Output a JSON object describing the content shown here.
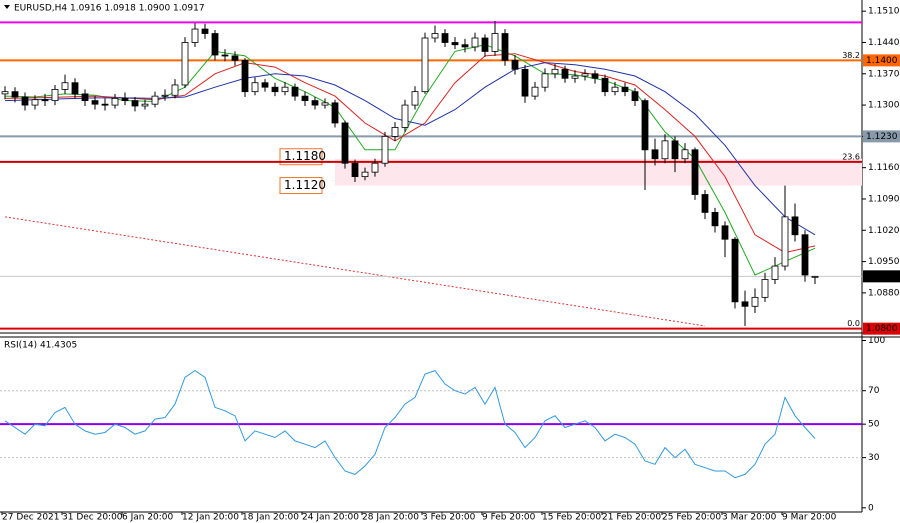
{
  "chart_data": [
    {
      "type": "candlestick",
      "title": "EURUSD,H4",
      "quote": "1.0916 1.0918 1.0900 1.0917",
      "categories": [
        "27 Dec 2021",
        null,
        null,
        null,
        null,
        null,
        "31 Dec 20:00",
        null,
        null,
        null,
        null,
        null,
        "6 Jan 20:00",
        null,
        null,
        null,
        null,
        null,
        "12 Jan 20:00",
        null,
        null,
        null,
        null,
        null,
        "18 Jan 20:00",
        null,
        null,
        null,
        null,
        null,
        "24 Jan 20:00",
        null,
        null,
        null,
        null,
        null,
        "28 Jan 20:00",
        null,
        null,
        null,
        null,
        null,
        "3 Feb 20:00",
        null,
        null,
        null,
        null,
        null,
        "9 Feb 20:00",
        null,
        null,
        null,
        null,
        null,
        "15 Feb 20:00",
        null,
        null,
        null,
        null,
        null,
        "21 Feb 20:00",
        null,
        null,
        null,
        null,
        null,
        "25 Feb 20:00",
        null,
        null,
        null,
        null,
        null,
        "3 Mar 20:00",
        null,
        null,
        null,
        null,
        null,
        "9 Mar 20:00",
        null,
        null,
        null
      ],
      "open": [
        1.1325,
        1.133,
        1.1318,
        1.13,
        1.1312,
        1.131,
        1.1335,
        1.135,
        1.1325,
        1.131,
        1.1302,
        1.13,
        1.1315,
        1.131,
        1.1298,
        1.1302,
        1.132,
        1.1322,
        1.1345,
        1.144,
        1.147,
        1.146,
        1.1412,
        1.141,
        1.14,
        1.133,
        1.135,
        1.134,
        1.133,
        1.134,
        1.132,
        1.131,
        1.13,
        1.1305,
        1.126,
        1.117,
        1.114,
        1.115,
        1.117,
        1.123,
        1.125,
        1.13,
        1.133,
        1.145,
        1.146,
        1.144,
        1.1435,
        1.143,
        1.145,
        1.142,
        1.146,
        1.14,
        1.138,
        1.132,
        1.134,
        1.137,
        1.138,
        1.136,
        1.1365,
        1.137,
        1.136,
        1.133,
        1.134,
        1.133,
        1.131,
        1.12,
        1.118,
        1.122,
        1.118,
        1.12,
        1.11,
        1.106,
        1.103,
        1.1,
        1.086,
        1.085,
        1.087,
        1.091,
        1.094,
        1.105,
        1.101,
        1.0916
      ],
      "high": [
        1.1342,
        1.134,
        1.1328,
        1.1322,
        1.1325,
        1.1345,
        1.1368,
        1.136,
        1.1335,
        1.132,
        1.1315,
        1.1325,
        1.1328,
        1.1318,
        1.1312,
        1.133,
        1.1335,
        1.1358,
        1.1452,
        1.1483,
        1.1482,
        1.1468,
        1.1425,
        1.142,
        1.1405,
        1.1362,
        1.1358,
        1.135,
        1.1352,
        1.1348,
        1.133,
        1.1318,
        1.1315,
        1.1312,
        1.1265,
        1.1178,
        1.116,
        1.118,
        1.124,
        1.1262,
        1.1312,
        1.1342,
        1.1462,
        1.1478,
        1.147,
        1.1452,
        1.1448,
        1.1462,
        1.1458,
        1.1488,
        1.147,
        1.1412,
        1.139,
        1.1352,
        1.1382,
        1.1392,
        1.1388,
        1.1378,
        1.138,
        1.1378,
        1.1368,
        1.1352,
        1.135,
        1.1338,
        1.1315,
        1.1225,
        1.1235,
        1.123,
        1.1215,
        1.1205,
        1.111,
        1.107,
        1.104,
        1.1005,
        1.0885,
        1.089,
        1.0925,
        1.096,
        1.112,
        1.108,
        1.102,
        1.0918
      ],
      "low": [
        1.1313,
        1.1306,
        1.1288,
        1.129,
        1.1298,
        1.13,
        1.1325,
        1.1315,
        1.1298,
        1.129,
        1.1288,
        1.1292,
        1.13,
        1.1286,
        1.129,
        1.1295,
        1.131,
        1.1315,
        1.1338,
        1.143,
        1.1448,
        1.14,
        1.1398,
        1.1388,
        1.1318,
        1.1322,
        1.133,
        1.132,
        1.1322,
        1.131,
        1.1298,
        1.129,
        1.1292,
        1.125,
        1.1158,
        1.1128,
        1.1132,
        1.114,
        1.1162,
        1.122,
        1.124,
        1.129,
        1.1325,
        1.144,
        1.143,
        1.1425,
        1.1418,
        1.142,
        1.1408,
        1.141,
        1.1388,
        1.1368,
        1.1305,
        1.1312,
        1.133,
        1.136,
        1.135,
        1.135,
        1.1355,
        1.1348,
        1.132,
        1.1322,
        1.132,
        1.1298,
        1.111,
        1.1165,
        1.117,
        1.115,
        1.117,
        1.1088,
        1.1045,
        1.1015,
        1.096,
        1.0845,
        1.0806,
        1.0835,
        1.086,
        1.09,
        1.093,
        1.0995,
        1.0905,
        1.09
      ],
      "close": [
        1.133,
        1.1318,
        1.13,
        1.1312,
        1.131,
        1.1335,
        1.135,
        1.1325,
        1.131,
        1.1302,
        1.13,
        1.1315,
        1.131,
        1.1298,
        1.1302,
        1.132,
        1.1322,
        1.1345,
        1.144,
        1.147,
        1.146,
        1.1412,
        1.141,
        1.14,
        1.133,
        1.135,
        1.134,
        1.133,
        1.134,
        1.132,
        1.131,
        1.13,
        1.1305,
        1.126,
        1.117,
        1.114,
        1.115,
        1.117,
        1.123,
        1.125,
        1.13,
        1.133,
        1.145,
        1.146,
        1.144,
        1.1435,
        1.143,
        1.145,
        1.142,
        1.146,
        1.14,
        1.138,
        1.132,
        1.134,
        1.137,
        1.138,
        1.136,
        1.1365,
        1.137,
        1.136,
        1.133,
        1.134,
        1.133,
        1.131,
        1.12,
        1.118,
        1.122,
        1.118,
        1.12,
        1.11,
        1.106,
        1.103,
        1.1,
        1.086,
        1.085,
        1.087,
        1.091,
        1.094,
        1.105,
        1.101,
        1.092,
        1.0917
      ],
      "color": "#000000",
      "ma": {
        "x": [
          0,
          3,
          6,
          9,
          12,
          15,
          18,
          21,
          24,
          27,
          30,
          33,
          36,
          39,
          42,
          45,
          48,
          51,
          54,
          57,
          60,
          63,
          66,
          69,
          72,
          75,
          78,
          81
        ],
        "series": [
          {
            "color": "#22aa22",
            "values": [
              1.132,
              1.1318,
              1.1325,
              1.1322,
              1.131,
              1.1308,
              1.134,
              1.142,
              1.141,
              1.136,
              1.133,
              1.1295,
              1.12,
              1.12,
              1.132,
              1.142,
              1.1435,
              1.141,
              1.137,
              1.1368,
              1.1355,
              1.133,
              1.124,
              1.118,
              1.106,
              1.092,
              1.095,
              1.098
            ]
          },
          {
            "color": "#dd2222",
            "values": [
              1.1315,
              1.1316,
              1.1318,
              1.132,
              1.1316,
              1.1312,
              1.1322,
              1.137,
              1.1395,
              1.1385,
              1.135,
              1.132,
              1.126,
              1.122,
              1.126,
              1.135,
              1.141,
              1.1415,
              1.1395,
              1.1375,
              1.1365,
              1.1345,
              1.129,
              1.123,
              1.114,
              1.101,
              1.097,
              1.0985
            ]
          },
          {
            "color": "#2233aa",
            "values": [
              1.131,
              1.1312,
              1.1314,
              1.1316,
              1.1316,
              1.1315,
              1.1318,
              1.134,
              1.136,
              1.137,
              1.1365,
              1.1345,
              1.131,
              1.127,
              1.1255,
              1.129,
              1.134,
              1.138,
              1.1395,
              1.139,
              1.138,
              1.1365,
              1.133,
              1.128,
              1.121,
              1.112,
              1.105,
              1.101
            ]
          }
        ]
      },
      "ylim": [
        1.0797,
        1.1535
      ],
      "yticks": [
        {
          "value": 1.151,
          "label": "1.1510"
        },
        {
          "value": 1.144,
          "label": "1.1440"
        },
        {
          "value": 1.137,
          "label": "1.1370"
        },
        {
          "value": 1.13,
          "label": "1.1300"
        },
        {
          "value": 1.123,
          "label": "1.1230"
        },
        {
          "value": 1.116,
          "label": "1.1160"
        },
        {
          "value": 1.109,
          "label": "1.1090"
        },
        {
          "value": 1.102,
          "label": "1.1020"
        },
        {
          "value": 1.095,
          "label": "1.0950"
        },
        {
          "value": 1.088,
          "label": "1.0880"
        }
      ],
      "levels": [
        {
          "value": 1.1485,
          "color": "#ee00ee"
        },
        {
          "value": 1.14,
          "label": "1.1400",
          "tag": "38.2",
          "color": "#ff6600"
        },
        {
          "value": 1.123,
          "label": "1.1230",
          "color": "#8899aa"
        },
        {
          "value": 1.1173,
          "tag": "23.6",
          "color": "#cc0000"
        },
        {
          "value": 1.08,
          "label": "1.0800",
          "tag": "0.0",
          "color": "#dd0000"
        }
      ],
      "zone": {
        "x_start": 33,
        "color": "#fde6ec",
        "from": {
          "value": 1.118,
          "label": "1.1180"
        },
        "to": {
          "value": 1.112,
          "label": "1.1120"
        }
      },
      "trendline": {
        "x": [
          0,
          70
        ],
        "y": [
          1.105,
          1.0806
        ],
        "color": "#dd3333"
      },
      "last": {
        "value": 1.0917,
        "label": "1.0917"
      }
    },
    {
      "type": "line",
      "title": "RSI(14) 41.4305",
      "values": [
        52,
        48,
        44,
        50,
        49,
        57,
        60,
        50,
        46,
        44,
        45,
        50,
        48,
        44,
        46,
        53,
        54,
        62,
        78,
        82,
        78,
        60,
        58,
        55,
        40,
        46,
        44,
        42,
        46,
        40,
        38,
        36,
        40,
        30,
        22,
        20,
        25,
        32,
        48,
        54,
        62,
        66,
        80,
        82,
        74,
        70,
        68,
        72,
        62,
        72,
        50,
        45,
        36,
        42,
        52,
        55,
        48,
        50,
        52,
        48,
        40,
        44,
        42,
        38,
        28,
        26,
        36,
        30,
        35,
        26,
        24,
        22,
        22,
        18,
        20,
        26,
        38,
        44,
        66,
        55,
        48,
        41.4305
      ],
      "color": "#3399dd",
      "ylim": [
        -2.5,
        101.5
      ],
      "yticks": [
        100,
        70,
        50,
        30,
        0
      ],
      "level": {
        "value": 50,
        "color": "#8800ee"
      }
    }
  ]
}
